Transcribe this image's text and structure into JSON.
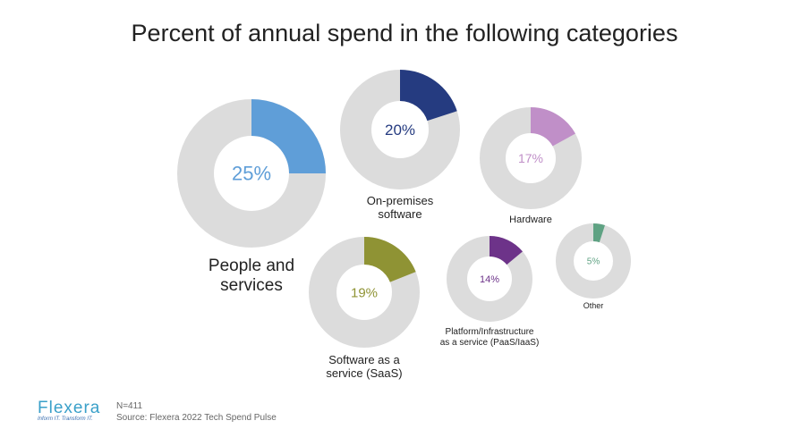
{
  "title": "Percent of annual spend in the following categories",
  "chart_data": {
    "type": "pie",
    "title": "Percent of annual spend in the following categories",
    "series": [
      {
        "label": "People and services",
        "value": 25,
        "color": "#5f9ed8",
        "value_label": "25%"
      },
      {
        "label": "On-premises software",
        "value": 20,
        "color": "#253b80",
        "value_label": "20%"
      },
      {
        "label": "Hardware",
        "value": 17,
        "color": "#c08fc8",
        "value_label": "17%"
      },
      {
        "label": "Software as a service (SaaS)",
        "value": 19,
        "color": "#8f9334",
        "value_label": "19%"
      },
      {
        "label": "Platform/Infrastructure as a service (PaaS/IaaS)",
        "value": 14,
        "color": "#6d3389",
        "value_label": "14%"
      },
      {
        "label": "Other",
        "value": 5,
        "color": "#5fa283",
        "value_label": "5%"
      }
    ],
    "remainder_color": "#dcdcdc"
  },
  "labels": {
    "people": [
      "People and",
      "services"
    ],
    "onprem": [
      "On-premises",
      "software"
    ],
    "hardware": [
      "Hardware"
    ],
    "saas": [
      "Software as a",
      "service (SaaS)"
    ],
    "paas": [
      "Platform/Infrastructure",
      "as a service (PaaS/IaaS)"
    ],
    "other": [
      "Other"
    ]
  },
  "footer": {
    "n": "N=411",
    "source": "Source: Flexera 2022 Tech Spend Pulse",
    "logo_text": "FLEXERA",
    "logo_tagline": "Inform IT. Transform IT."
  }
}
